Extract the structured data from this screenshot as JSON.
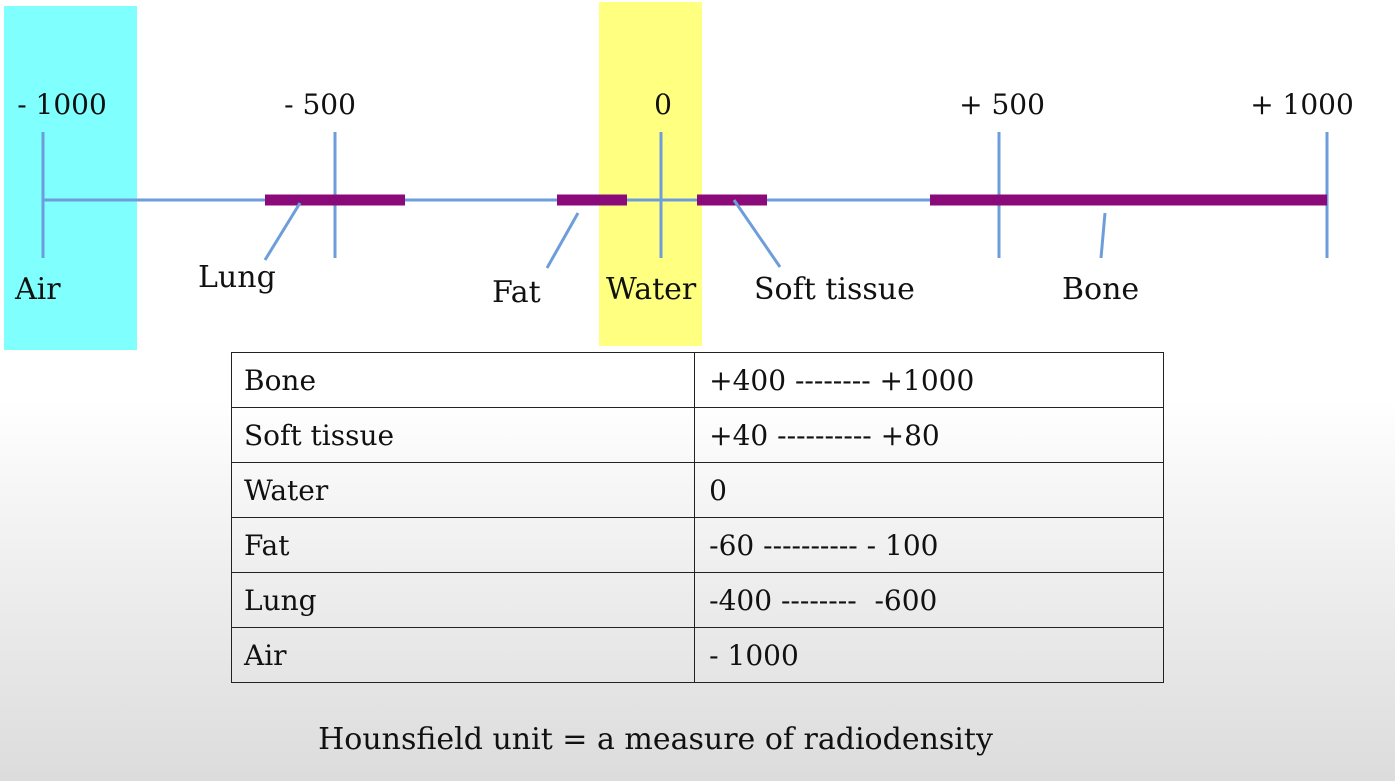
{
  "scale": {
    "tick_labels": [
      "- 1000",
      "- 500",
      "0",
      "+ 500",
      "+ 1000"
    ],
    "tissue_labels": [
      "Air",
      "Lung",
      "Fat",
      "Water",
      "Soft tissue",
      "Bone"
    ],
    "highlights": {
      "air": {
        "color": "#80FFFF",
        "value": -1000
      },
      "water": {
        "color": "#FFFF80",
        "value": 0
      }
    },
    "ranges": [
      {
        "tissue": "Lung",
        "from": -400,
        "to": -600
      },
      {
        "tissue": "Fat",
        "from": -60,
        "to": -100
      },
      {
        "tissue": "Soft tissue",
        "from": 40,
        "to": 80
      },
      {
        "tissue": "Bone",
        "from": 400,
        "to": 1000
      }
    ],
    "colors": {
      "axis": "#6D9EDB",
      "range_bar": "#8B0A7A"
    }
  },
  "table": {
    "rows": [
      {
        "tissue": "Bone",
        "range": "+400 -------- +1000"
      },
      {
        "tissue": "Soft tissue",
        "range": "+40 ---------- +80"
      },
      {
        "tissue": "Water",
        "range": "0"
      },
      {
        "tissue": "Fat",
        "range": "-60 ---------- - 100"
      },
      {
        "tissue": "Lung",
        "range": "-400 --------  -600"
      },
      {
        "tissue": "Air",
        "range": "- 1000"
      }
    ]
  },
  "caption": "Hounsfield unit = a measure of radiodensity"
}
